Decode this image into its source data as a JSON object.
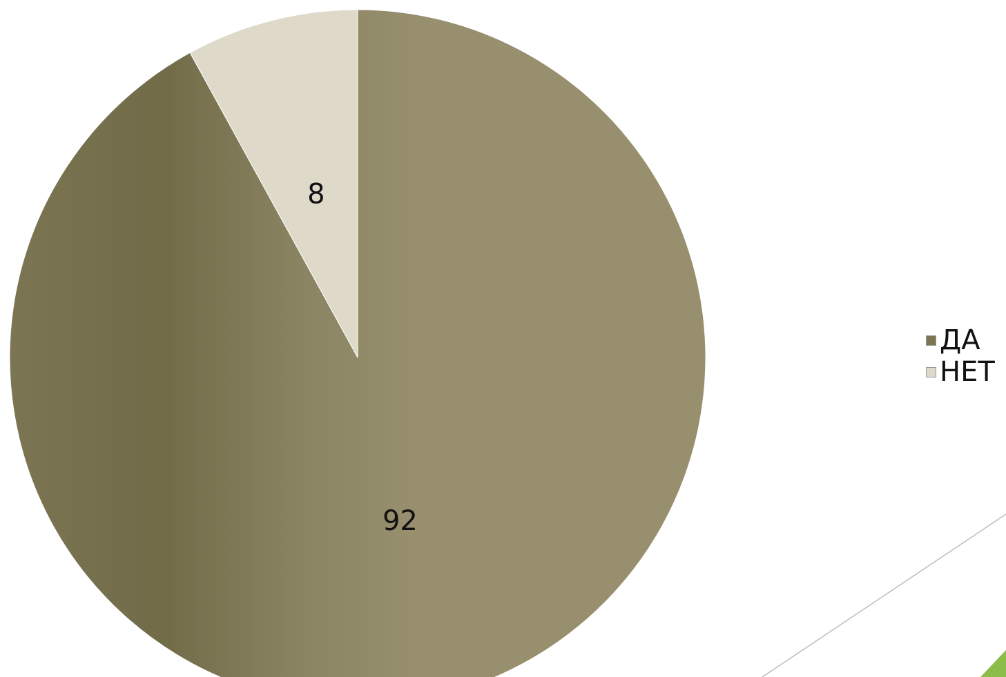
{
  "chart_data": {
    "type": "pie",
    "categories": [
      "ДА",
      "НЕТ"
    ],
    "values": [
      92,
      8
    ],
    "colors": [
      "#978f6e",
      "#ded9c8"
    ],
    "data_labels": [
      "92",
      "8"
    ],
    "legend": [
      "ДА",
      "НЕТ"
    ],
    "legend_position": "right",
    "start": "top",
    "direction": "clockwise"
  },
  "decoration": {
    "accent_color": "#8cbd48",
    "line_color": "#bdbdbd"
  }
}
